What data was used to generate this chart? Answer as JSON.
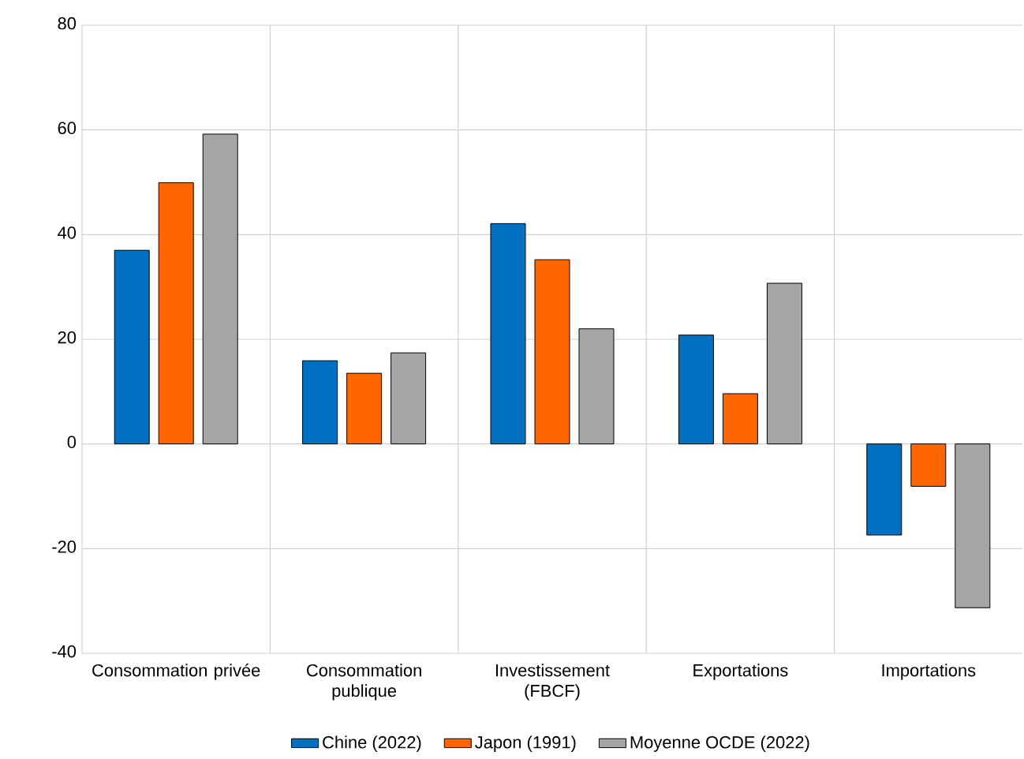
{
  "chart_data": {
    "type": "bar",
    "categories": [
      "Consommation privée",
      "Consommation publique",
      "Investissement (FBCF)",
      "Exportations",
      "Importations"
    ],
    "series": [
      {
        "name": "Chine (2022)",
        "color": "#0070c0",
        "values": [
          37.0,
          15.9,
          42.1,
          20.8,
          -17.4
        ]
      },
      {
        "name": "Japon (1991)",
        "color": "#ff6600",
        "values": [
          49.9,
          13.5,
          35.2,
          9.6,
          -8.1
        ]
      },
      {
        "name": "Moyenne OCDE (2022)",
        "color": "#a5a5a5",
        "values": [
          59.2,
          17.4,
          22.0,
          30.7,
          -31.3
        ]
      }
    ],
    "ylim": [
      -40,
      80
    ],
    "yticks": [
      -40,
      -20,
      0,
      20,
      40,
      60,
      80
    ],
    "grid": true,
    "legend": "bottom"
  }
}
